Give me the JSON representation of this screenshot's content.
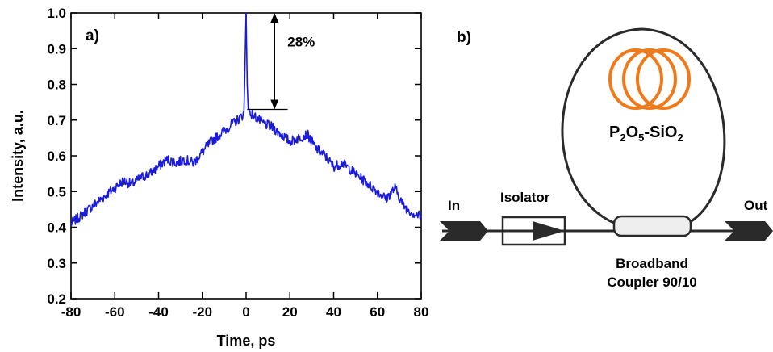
{
  "panel_a": {
    "label": "a)",
    "annotation": "28%"
  },
  "panel_b": {
    "label": "b)",
    "fiber_label": "P2O5-SiO2",
    "input_label": "In",
    "output_label": "Out",
    "isolator_label": "Isolator",
    "coupler_label_line1": "Broadband",
    "coupler_label_line2": "Coupler 90/10",
    "colors": {
      "fiber_coil": "#f07a1a",
      "coupler_fill": "#eeeeee",
      "line": "#2a2a2a"
    }
  },
  "chart_data": {
    "type": "line",
    "xlabel": "Time, ps",
    "ylabel": "Intensity, a.u.",
    "xlim": [
      -80,
      80
    ],
    "ylim": [
      0.2,
      1.0
    ],
    "xticks": [
      "-80",
      "-60",
      "-40",
      "-20",
      "0",
      "20",
      "40",
      "60",
      "80"
    ],
    "yticks": [
      "0.2",
      "0.3",
      "0.4",
      "0.5",
      "0.6",
      "0.7",
      "0.8",
      "0.9",
      "1.0"
    ],
    "grid": false,
    "series": [
      {
        "color": "#1a1adb",
        "x": [
          -80,
          -76,
          -72,
          -68,
          -64,
          -60,
          -56,
          -52,
          -48,
          -44,
          -40,
          -36,
          -32,
          -28,
          -24,
          -20,
          -16,
          -12,
          -8,
          -4,
          -2,
          -1,
          -0.5,
          0,
          0.5,
          1,
          2,
          4,
          8,
          12,
          16,
          20,
          24,
          28,
          32,
          36,
          40,
          44,
          48,
          52,
          56,
          60,
          64,
          68,
          72,
          76,
          80
        ],
        "y": [
          0.41,
          0.43,
          0.45,
          0.47,
          0.49,
          0.51,
          0.53,
          0.52,
          0.54,
          0.55,
          0.57,
          0.59,
          0.58,
          0.59,
          0.58,
          0.61,
          0.64,
          0.66,
          0.68,
          0.7,
          0.71,
          0.72,
          0.85,
          1.0,
          0.8,
          0.73,
          0.72,
          0.71,
          0.69,
          0.68,
          0.66,
          0.64,
          0.65,
          0.66,
          0.62,
          0.6,
          0.57,
          0.58,
          0.56,
          0.54,
          0.52,
          0.5,
          0.48,
          0.51,
          0.46,
          0.44,
          0.43
        ]
      }
    ],
    "annotation": {
      "text": "28%",
      "arrow_from": 1.0,
      "arrow_to": 0.73,
      "x": 13
    }
  }
}
